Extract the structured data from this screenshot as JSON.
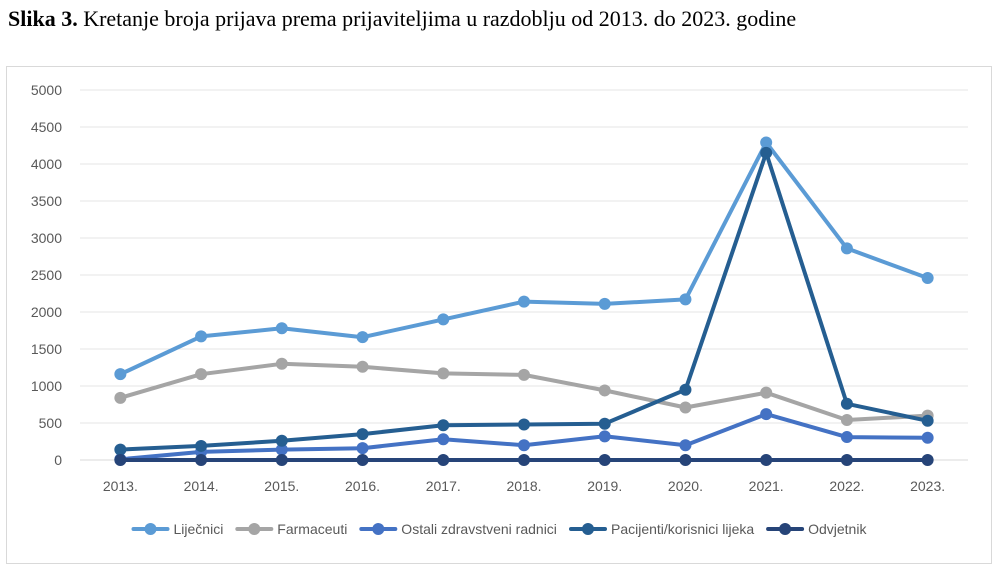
{
  "caption": {
    "label": "Slika 3.",
    "text": "Kretanje broja prijava prema prijaviteljima u razdoblju od 2013. do 2023. godine"
  },
  "chart_data": {
    "type": "line",
    "categories": [
      "2013.",
      "2014.",
      "2015.",
      "2016.",
      "2017.",
      "2018.",
      "2019.",
      "2020.",
      "2021.",
      "2022.",
      "2023."
    ],
    "ylim": [
      0,
      5000
    ],
    "yticks": [
      0,
      500,
      1000,
      1500,
      2000,
      2500,
      3000,
      3500,
      4000,
      4500,
      5000
    ],
    "grid": true,
    "legend_position": "bottom",
    "series": [
      {
        "name": "Liječnici",
        "color": "#5b9bd5",
        "values": [
          1160,
          1670,
          1780,
          1660,
          1900,
          2140,
          2110,
          2170,
          4290,
          2860,
          2460
        ]
      },
      {
        "name": "Farmaceuti",
        "color": "#a5a5a5",
        "values": [
          840,
          1160,
          1300,
          1260,
          1170,
          1150,
          940,
          710,
          910,
          540,
          600
        ]
      },
      {
        "name": "Ostali zdravstveni radnici",
        "color": "#4472c4",
        "values": [
          10,
          110,
          140,
          160,
          280,
          200,
          320,
          200,
          620,
          310,
          300
        ]
      },
      {
        "name": "Pacijenti/korisnici lijeka",
        "color": "#255e91",
        "values": [
          140,
          190,
          260,
          350,
          470,
          480,
          490,
          950,
          4150,
          760,
          530
        ]
      },
      {
        "name": "Odvjetnik",
        "color": "#264478",
        "values": [
          0,
          0,
          0,
          0,
          0,
          0,
          0,
          0,
          0,
          0,
          0
        ]
      }
    ]
  }
}
